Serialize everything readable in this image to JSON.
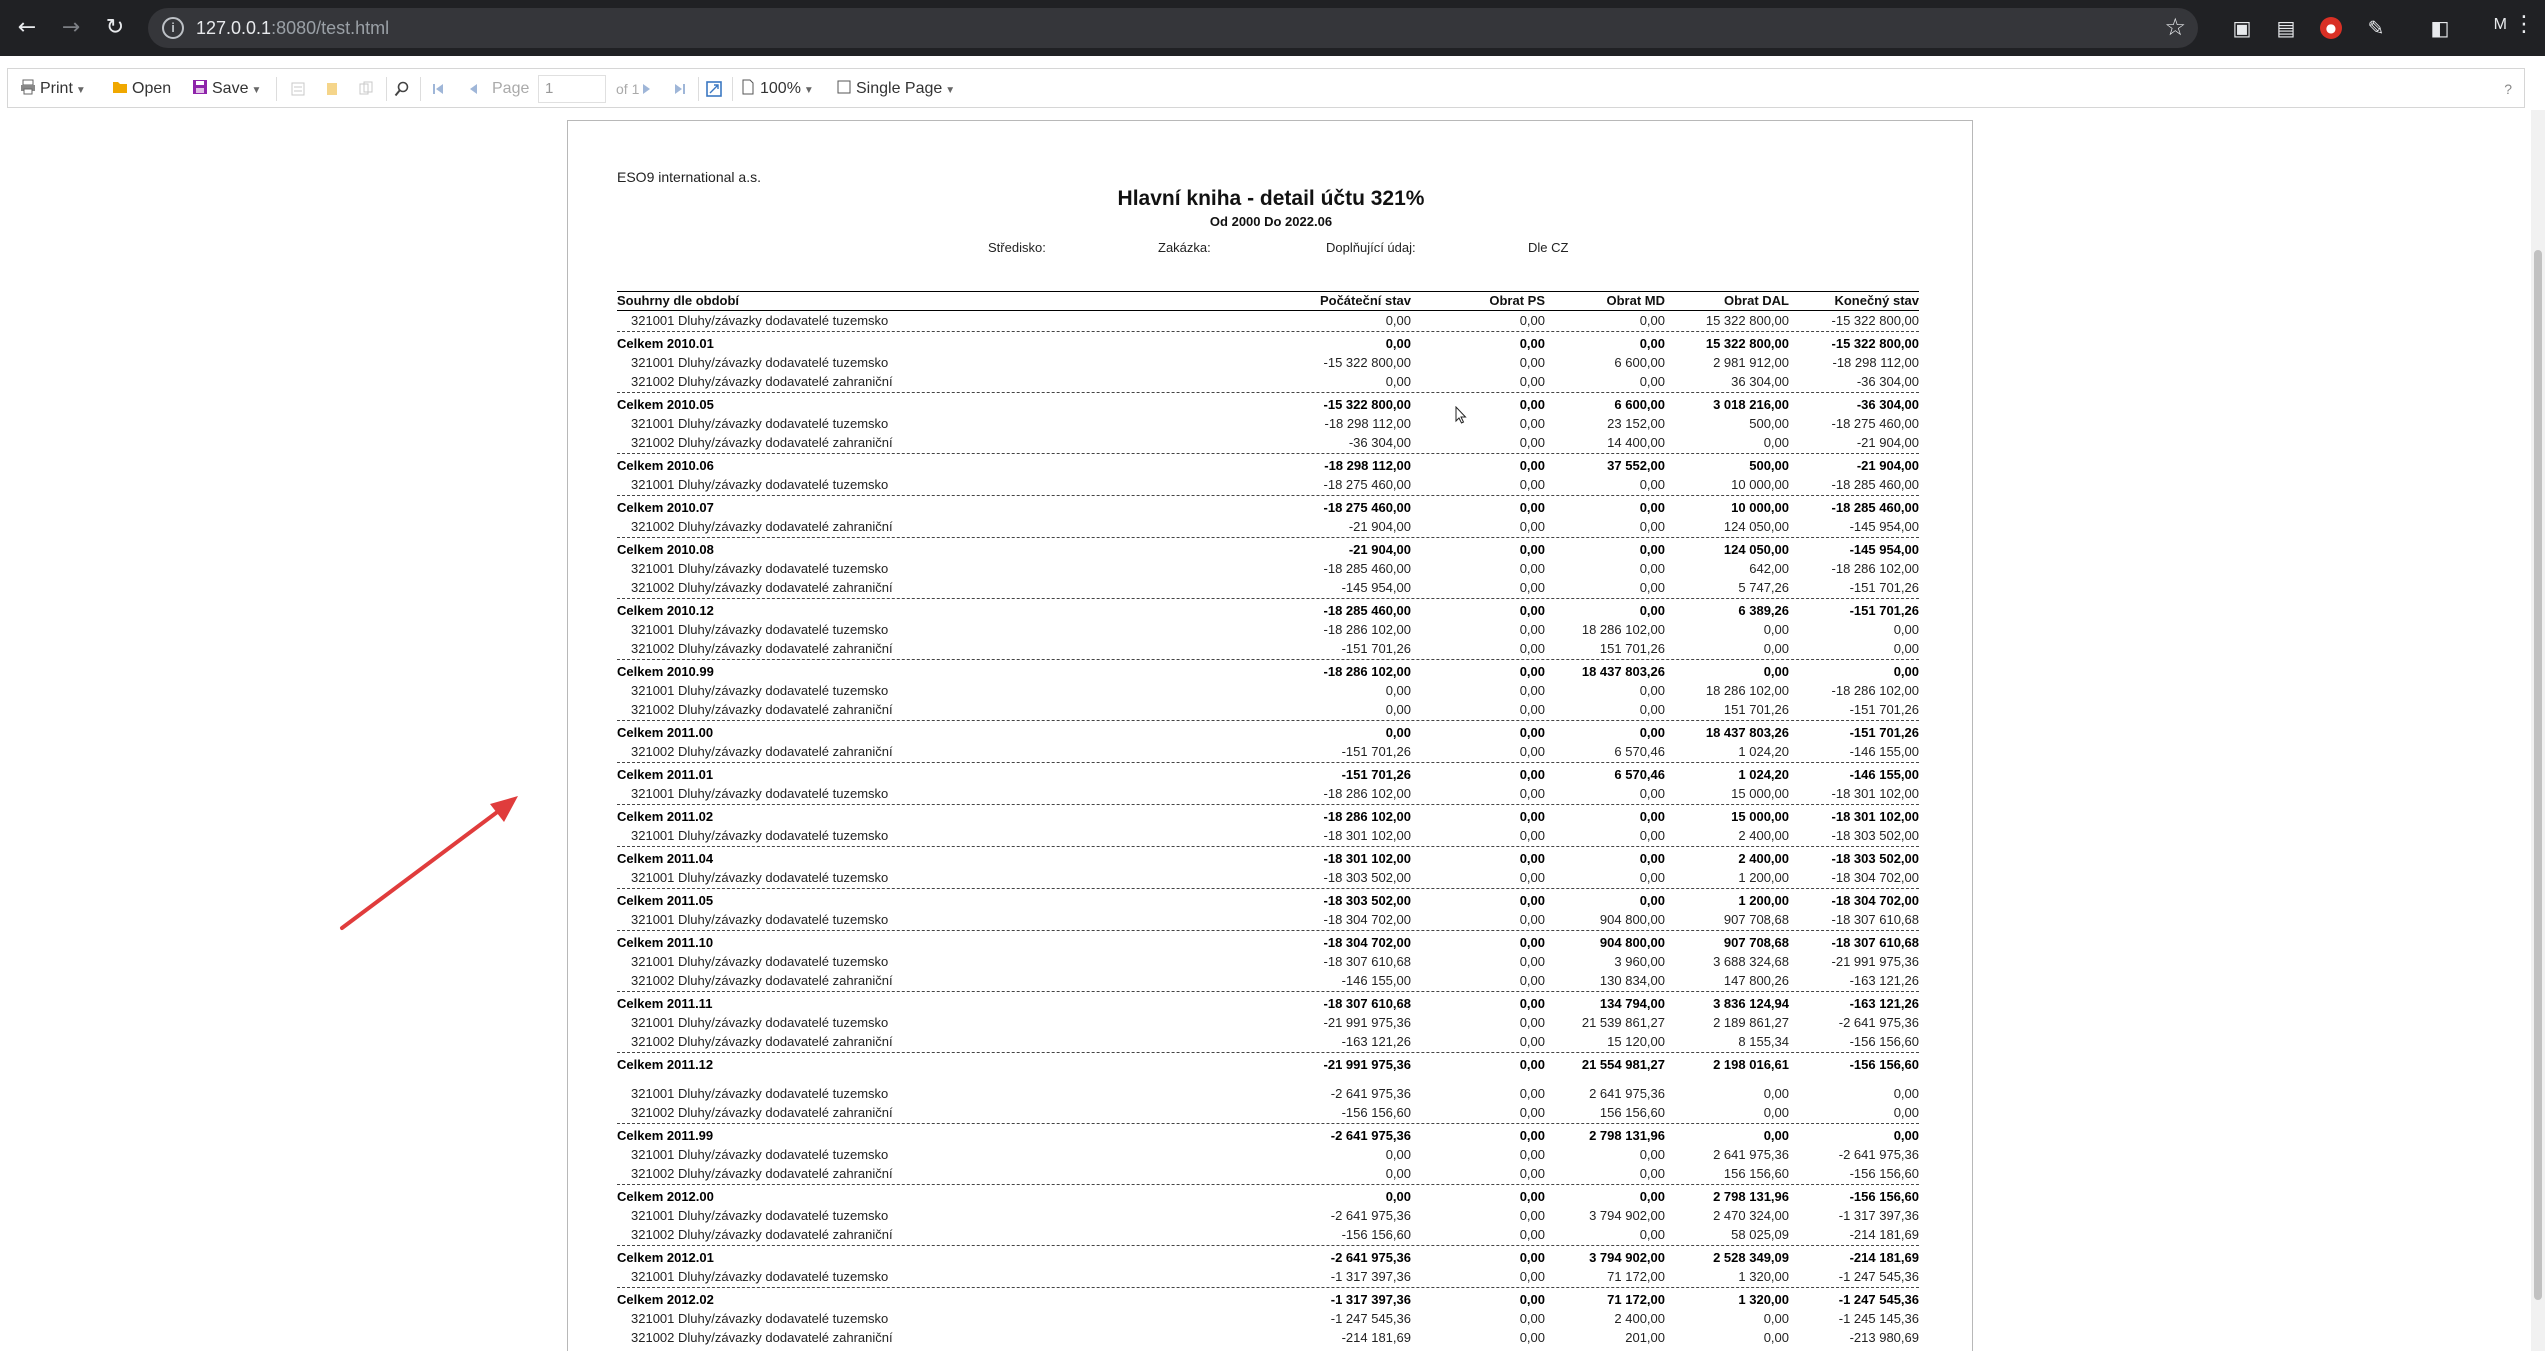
{
  "browser": {
    "url_host": "127.0.0.1",
    "url_rest": ":8080/test.html",
    "profile_initial": "M"
  },
  "toolbar": {
    "print_label": "Print",
    "open_label": "Open",
    "save_label": "Save",
    "page_label": "Page",
    "page_value": "1",
    "of_label": "of 1",
    "zoom_label": "100%",
    "view_mode_label": "Single Page",
    "help_label": "?"
  },
  "report": {
    "company": "ESO9 international a.s.",
    "title": "Hlavní kniha - detail účtu 321%",
    "subtitle": "Od 2000  Do 2022.06",
    "filters": {
      "stredisko": "Středisko:",
      "zakazka": "Zakázka:",
      "doplnujici": "Doplňující údaj:",
      "dle": "Dle CZ"
    },
    "columns": {
      "period": "Souhrny dle období",
      "pocatecni": "Počáteční stav",
      "obrat_ps": "Obrat PS",
      "obrat_md": "Obrat MD",
      "obrat_dal": "Obrat DAL",
      "konecny": "Konečný stav"
    },
    "rows": [
      {
        "type": "detail",
        "desc": "321001 Dluhy/závazky dodavatelé tuzemsko",
        "v": [
          "0,00",
          "0,00",
          "0,00",
          "15 322 800,00",
          "-15 322 800,00"
        ]
      },
      {
        "type": "total",
        "desc": "Celkem 2010.01",
        "v": [
          "0,00",
          "0,00",
          "0,00",
          "15 322 800,00",
          "-15 322 800,00"
        ]
      },
      {
        "type": "detail",
        "desc": "321001 Dluhy/závazky dodavatelé tuzemsko",
        "v": [
          "-15 322 800,00",
          "0,00",
          "6 600,00",
          "2 981 912,00",
          "-18 298 112,00"
        ]
      },
      {
        "type": "detail",
        "desc": "321002 Dluhy/závazky dodavatelé zahraniční",
        "v": [
          "0,00",
          "0,00",
          "0,00",
          "36 304,00",
          "-36 304,00"
        ]
      },
      {
        "type": "total",
        "desc": "Celkem 2010.05",
        "v": [
          "-15 322 800,00",
          "0,00",
          "6 600,00",
          "3 018 216,00",
          "-36 304,00"
        ]
      },
      {
        "type": "detail",
        "desc": "321001 Dluhy/závazky dodavatelé tuzemsko",
        "v": [
          "-18 298 112,00",
          "0,00",
          "23 152,00",
          "500,00",
          "-18 275 460,00"
        ]
      },
      {
        "type": "detail",
        "desc": "321002 Dluhy/závazky dodavatelé zahraniční",
        "v": [
          "-36 304,00",
          "0,00",
          "14 400,00",
          "0,00",
          "-21 904,00"
        ]
      },
      {
        "type": "total",
        "desc": "Celkem 2010.06",
        "v": [
          "-18 298 112,00",
          "0,00",
          "37 552,00",
          "500,00",
          "-21 904,00"
        ]
      },
      {
        "type": "detail",
        "desc": "321001 Dluhy/závazky dodavatelé tuzemsko",
        "v": [
          "-18 275 460,00",
          "0,00",
          "0,00",
          "10 000,00",
          "-18 285 460,00"
        ]
      },
      {
        "type": "total",
        "desc": "Celkem 2010.07",
        "v": [
          "-18 275 460,00",
          "0,00",
          "0,00",
          "10 000,00",
          "-18 285 460,00"
        ]
      },
      {
        "type": "detail",
        "desc": "321002 Dluhy/závazky dodavatelé zahraniční",
        "v": [
          "-21 904,00",
          "0,00",
          "0,00",
          "124 050,00",
          "-145 954,00"
        ]
      },
      {
        "type": "total",
        "desc": "Celkem 2010.08",
        "v": [
          "-21 904,00",
          "0,00",
          "0,00",
          "124 050,00",
          "-145 954,00"
        ]
      },
      {
        "type": "detail",
        "desc": "321001 Dluhy/závazky dodavatelé tuzemsko",
        "v": [
          "-18 285 460,00",
          "0,00",
          "0,00",
          "642,00",
          "-18 286 102,00"
        ]
      },
      {
        "type": "detail",
        "desc": "321002 Dluhy/závazky dodavatelé zahraniční",
        "v": [
          "-145 954,00",
          "0,00",
          "0,00",
          "5 747,26",
          "-151 701,26"
        ]
      },
      {
        "type": "total",
        "desc": "Celkem 2010.12",
        "v": [
          "-18 285 460,00",
          "0,00",
          "0,00",
          "6 389,26",
          "-151 701,26"
        ]
      },
      {
        "type": "detail",
        "desc": "321001 Dluhy/závazky dodavatelé tuzemsko",
        "v": [
          "-18 286 102,00",
          "0,00",
          "18 286 102,00",
          "0,00",
          "0,00"
        ]
      },
      {
        "type": "detail",
        "desc": "321002 Dluhy/závazky dodavatelé zahraniční",
        "v": [
          "-151 701,26",
          "0,00",
          "151 701,26",
          "0,00",
          "0,00"
        ]
      },
      {
        "type": "total",
        "desc": "Celkem 2010.99",
        "v": [
          "-18 286 102,00",
          "0,00",
          "18 437 803,26",
          "0,00",
          "0,00"
        ]
      },
      {
        "type": "detail",
        "desc": "321001 Dluhy/závazky dodavatelé tuzemsko",
        "v": [
          "0,00",
          "0,00",
          "0,00",
          "18 286 102,00",
          "-18 286 102,00"
        ]
      },
      {
        "type": "detail",
        "desc": "321002 Dluhy/závazky dodavatelé zahraniční",
        "v": [
          "0,00",
          "0,00",
          "0,00",
          "151 701,26",
          "-151 701,26"
        ]
      },
      {
        "type": "total",
        "desc": "Celkem 2011.00",
        "v": [
          "0,00",
          "0,00",
          "0,00",
          "18 437 803,26",
          "-151 701,26"
        ]
      },
      {
        "type": "detail",
        "desc": "321002 Dluhy/závazky dodavatelé zahraniční",
        "v": [
          "-151 701,26",
          "0,00",
          "6 570,46",
          "1 024,20",
          "-146 155,00"
        ]
      },
      {
        "type": "total",
        "desc": "Celkem 2011.01",
        "v": [
          "-151 701,26",
          "0,00",
          "6 570,46",
          "1 024,20",
          "-146 155,00"
        ]
      },
      {
        "type": "detail",
        "desc": "321001 Dluhy/závazky dodavatelé tuzemsko",
        "v": [
          "-18 286 102,00",
          "0,00",
          "0,00",
          "15 000,00",
          "-18 301 102,00"
        ]
      },
      {
        "type": "total",
        "desc": "Celkem 2011.02",
        "v": [
          "-18 286 102,00",
          "0,00",
          "0,00",
          "15 000,00",
          "-18 301 102,00"
        ]
      },
      {
        "type": "detail",
        "desc": "321001 Dluhy/závazky dodavatelé tuzemsko",
        "v": [
          "-18 301 102,00",
          "0,00",
          "0,00",
          "2 400,00",
          "-18 303 502,00"
        ]
      },
      {
        "type": "total",
        "desc": "Celkem 2011.04",
        "v": [
          "-18 301 102,00",
          "0,00",
          "0,00",
          "2 400,00",
          "-18 303 502,00"
        ]
      },
      {
        "type": "detail",
        "desc": "321001 Dluhy/závazky dodavatelé tuzemsko",
        "v": [
          "-18 303 502,00",
          "0,00",
          "0,00",
          "1 200,00",
          "-18 304 702,00"
        ]
      },
      {
        "type": "total",
        "desc": "Celkem 2011.05",
        "v": [
          "-18 303 502,00",
          "0,00",
          "0,00",
          "1 200,00",
          "-18 304 702,00"
        ]
      },
      {
        "type": "detail",
        "desc": "321001 Dluhy/závazky dodavatelé tuzemsko",
        "v": [
          "-18 304 702,00",
          "0,00",
          "904 800,00",
          "907 708,68",
          "-18 307 610,68"
        ]
      },
      {
        "type": "total",
        "desc": "Celkem 2011.10",
        "v": [
          "-18 304 702,00",
          "0,00",
          "904 800,00",
          "907 708,68",
          "-18 307 610,68"
        ]
      },
      {
        "type": "detail",
        "desc": "321001 Dluhy/závazky dodavatelé tuzemsko",
        "v": [
          "-18 307 610,68",
          "0,00",
          "3 960,00",
          "3 688 324,68",
          "-21 991 975,36"
        ]
      },
      {
        "type": "detail",
        "desc": "321002 Dluhy/závazky dodavatelé zahraniční",
        "v": [
          "-146 155,00",
          "0,00",
          "130 834,00",
          "147 800,26",
          "-163 121,26"
        ]
      },
      {
        "type": "total",
        "desc": "Celkem 2011.11",
        "v": [
          "-18 307 610,68",
          "0,00",
          "134 794,00",
          "3 836 124,94",
          "-163 121,26"
        ]
      },
      {
        "type": "detail",
        "desc": "321001 Dluhy/závazky dodavatelé tuzemsko",
        "v": [
          "-21 991 975,36",
          "0,00",
          "21 539 861,27",
          "2 189 861,27",
          "-2 641 975,36"
        ]
      },
      {
        "type": "detail",
        "desc": "321002 Dluhy/závazky dodavatelé zahraniční",
        "v": [
          "-163 121,26",
          "0,00",
          "15 120,00",
          "8 155,34",
          "-156 156,60"
        ]
      },
      {
        "type": "total",
        "desc": "Celkem 2011.12",
        "v": [
          "-21 991 975,36",
          "0,00",
          "21 554 981,27",
          "2 198 016,61",
          "-156 156,60"
        ]
      },
      {
        "type": "gap"
      },
      {
        "type": "detail",
        "desc": "321001 Dluhy/závazky dodavatelé tuzemsko",
        "v": [
          "-2 641 975,36",
          "0,00",
          "2 641 975,36",
          "0,00",
          "0,00"
        ]
      },
      {
        "type": "detail",
        "desc": "321002 Dluhy/závazky dodavatelé zahraniční",
        "v": [
          "-156 156,60",
          "0,00",
          "156 156,60",
          "0,00",
          "0,00"
        ]
      },
      {
        "type": "total",
        "desc": "Celkem 2011.99",
        "v": [
          "-2 641 975,36",
          "0,00",
          "2 798 131,96",
          "0,00",
          "0,00"
        ]
      },
      {
        "type": "detail",
        "desc": "321001 Dluhy/závazky dodavatelé tuzemsko",
        "v": [
          "0,00",
          "0,00",
          "0,00",
          "2 641 975,36",
          "-2 641 975,36"
        ]
      },
      {
        "type": "detail",
        "desc": "321002 Dluhy/závazky dodavatelé zahraniční",
        "v": [
          "0,00",
          "0,00",
          "0,00",
          "156 156,60",
          "-156 156,60"
        ]
      },
      {
        "type": "total",
        "desc": "Celkem 2012.00",
        "v": [
          "0,00",
          "0,00",
          "0,00",
          "2 798 131,96",
          "-156 156,60"
        ]
      },
      {
        "type": "detail",
        "desc": "321001 Dluhy/závazky dodavatelé tuzemsko",
        "v": [
          "-2 641 975,36",
          "0,00",
          "3 794 902,00",
          "2 470 324,00",
          "-1 317 397,36"
        ]
      },
      {
        "type": "detail",
        "desc": "321002 Dluhy/závazky dodavatelé zahraniční",
        "v": [
          "-156 156,60",
          "0,00",
          "0,00",
          "58 025,09",
          "-214 181,69"
        ]
      },
      {
        "type": "total",
        "desc": "Celkem 2012.01",
        "v": [
          "-2 641 975,36",
          "0,00",
          "3 794 902,00",
          "2 528 349,09",
          "-214 181,69"
        ]
      },
      {
        "type": "detail",
        "desc": "321001 Dluhy/závazky dodavatelé tuzemsko",
        "v": [
          "-1 317 397,36",
          "0,00",
          "71 172,00",
          "1 320,00",
          "-1 247 545,36"
        ]
      },
      {
        "type": "total",
        "desc": "Celkem 2012.02",
        "v": [
          "-1 317 397,36",
          "0,00",
          "71 172,00",
          "1 320,00",
          "-1 247 545,36"
        ]
      },
      {
        "type": "detail",
        "desc": "321001 Dluhy/závazky dodavatelé tuzemsko",
        "v": [
          "-1 247 545,36",
          "0,00",
          "2 400,00",
          "0,00",
          "-1 245 145,36"
        ]
      },
      {
        "type": "detail",
        "desc": "321002 Dluhy/závazky dodavatelé zahraniční",
        "v": [
          "-214 181,69",
          "0,00",
          "201,00",
          "0,00",
          "-213 980,69"
        ]
      }
    ]
  },
  "colors": {
    "chrome_bg": "#202124",
    "omnibox_bg": "#35363a",
    "annotation_arrow": "#e03c3c",
    "save_icon": "#8e24aa",
    "open_icon": "#f0a800"
  }
}
